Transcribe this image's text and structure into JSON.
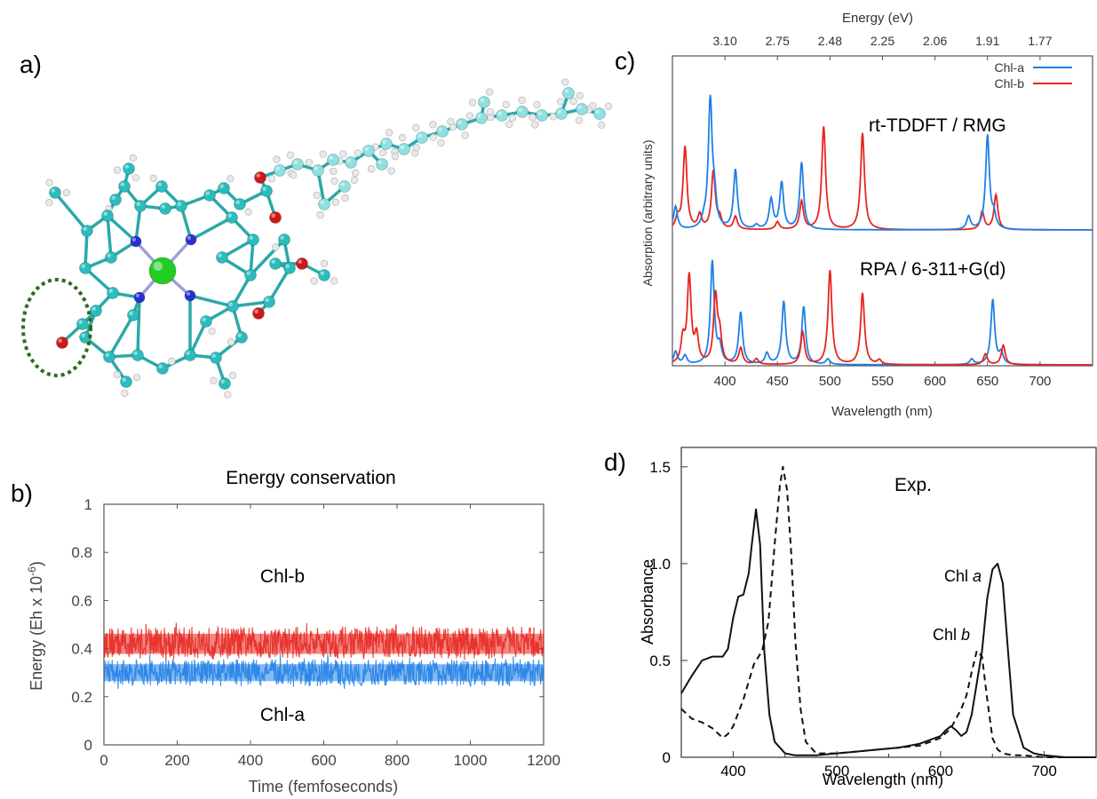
{
  "panels": {
    "a": {
      "letter": "a)"
    },
    "b": {
      "letter": "b)"
    },
    "c": {
      "letter": "c)"
    },
    "d": {
      "letter": "d)"
    }
  },
  "colors": {
    "chl_a_blue": "#1f7fe6",
    "chl_b_red": "#e8241e",
    "carbon": "#2bbdbd",
    "nitrogen": "#2a2fd0",
    "oxygen": "#d01818",
    "magnesium": "#22cc22",
    "hydrogen": "#e9e9e9",
    "highlight_green": "#2e6b1d"
  },
  "chart_data": [
    {
      "panel": "b",
      "type": "line",
      "title": "Energy conservation",
      "xlabel": "Time (femfoseconds)",
      "ylabel": "Energy (Eh x 10",
      "ylabel_sup": "-6",
      "ylabel_close": ")",
      "xlim": [
        0,
        1200
      ],
      "ylim": [
        0,
        1
      ],
      "xticks": [
        "0",
        "200",
        "400",
        "600",
        "800",
        "1000",
        "1200"
      ],
      "yticks": [
        "0",
        "0.2",
        "0.4",
        "0.6",
        "0.8",
        "1"
      ],
      "series": [
        {
          "name": "Chl-b",
          "color": "#e8241e",
          "mean": 0.42,
          "band": [
            0.33,
            0.52
          ]
        },
        {
          "name": "Chl-a",
          "color": "#1f7fe6",
          "mean": 0.3,
          "band": [
            0.22,
            0.38
          ]
        }
      ],
      "annotations": [
        "Chl-b",
        "Chl-a"
      ]
    },
    {
      "panel": "c",
      "type": "line",
      "top_axis_label": "Energy (eV)",
      "top_ticks": [
        "3.10",
        "2.75",
        "2.48",
        "2.25",
        "2.06",
        "1.91",
        "1.77"
      ],
      "top_tick_wavelengths": [
        400,
        450,
        500,
        550,
        600,
        650,
        700
      ],
      "xlabel": "Wavelength (nm)",
      "ylabel": "Absorption (arbitrary units)",
      "xlim": [
        350,
        750
      ],
      "xticks": [
        "400",
        "450",
        "500",
        "550",
        "600",
        "650",
        "700"
      ],
      "legend": [
        "Chl-a",
        "Chl-b"
      ],
      "legend_position": "top-right",
      "method_labels": [
        "rt-TDDFT / RMG",
        "RPA  / 6-311+G(d)"
      ],
      "series": [
        {
          "name": "Chl-a",
          "method": "rt-TDDFT / RMG",
          "peaks": [
            [
              353,
              0.18
            ],
            [
              380,
              0.05
            ],
            [
              386,
              1.0
            ],
            [
              390,
              0.2
            ],
            [
              410,
              0.46
            ],
            [
              430,
              0.03
            ],
            [
              444,
              0.23
            ],
            [
              454,
              0.36
            ],
            [
              473,
              0.52
            ],
            [
              632,
              0.1
            ],
            [
              650,
              0.73
            ],
            [
              656,
              0.1
            ]
          ]
        },
        {
          "name": "Chl-b",
          "method": "rt-TDDFT / RMG",
          "peaks": [
            [
              355,
              0.08
            ],
            [
              362,
              0.64
            ],
            [
              376,
              0.11
            ],
            [
              389,
              0.45
            ],
            [
              395,
              0.08
            ],
            [
              410,
              0.1
            ],
            [
              450,
              0.06
            ],
            [
              473,
              0.22
            ],
            [
              494,
              0.8
            ],
            [
              531,
              0.75
            ],
            [
              645,
              0.14
            ],
            [
              658,
              0.27
            ]
          ]
        },
        {
          "name": "Chl-a",
          "method": "RPA  / 6-311+G(d)",
          "peaks": [
            [
              353,
              0.12
            ],
            [
              362,
              0.08
            ],
            [
              388,
              0.95
            ],
            [
              395,
              0.15
            ],
            [
              415,
              0.48
            ],
            [
              440,
              0.1
            ],
            [
              456,
              0.58
            ],
            [
              475,
              0.53
            ],
            [
              498,
              0.05
            ],
            [
              635,
              0.05
            ],
            [
              655,
              0.6
            ],
            [
              663,
              0.1
            ]
          ]
        },
        {
          "name": "Chl-b",
          "method": "RPA  / 6-311+G(d)",
          "peaks": [
            [
              360,
              0.22
            ],
            [
              366,
              0.8
            ],
            [
              373,
              0.25
            ],
            [
              391,
              0.62
            ],
            [
              395,
              0.25
            ],
            [
              415,
              0.15
            ],
            [
              430,
              0.05
            ],
            [
              474,
              0.3
            ],
            [
              500,
              0.87
            ],
            [
              531,
              0.66
            ],
            [
              547,
              0.04
            ],
            [
              648,
              0.1
            ],
            [
              665,
              0.18
            ]
          ]
        }
      ]
    },
    {
      "panel": "d",
      "type": "line",
      "title": "Exp.",
      "xlabel": "Wavelength  (nm)",
      "ylabel": "Absorbance",
      "xlim": [
        350,
        750
      ],
      "ylim": [
        0,
        1.6
      ],
      "xticks": [
        "400",
        "500",
        "600",
        "700"
      ],
      "yticks": [
        "0",
        "0.5",
        "1.0",
        "1.5"
      ],
      "series": [
        {
          "name": "Chl a",
          "style": "solid",
          "x": [
            350,
            360,
            370,
            380,
            390,
            395,
            400,
            405,
            410,
            415,
            418,
            422,
            426,
            430,
            435,
            440,
            450,
            460,
            480,
            500,
            520,
            540,
            560,
            580,
            600,
            605,
            610,
            615,
            620,
            625,
            630,
            640,
            645,
            650,
            655,
            660,
            665,
            670,
            680,
            690,
            700,
            720,
            750
          ],
          "y": [
            0.33,
            0.42,
            0.5,
            0.52,
            0.52,
            0.56,
            0.72,
            0.83,
            0.84,
            0.95,
            1.1,
            1.28,
            1.1,
            0.55,
            0.22,
            0.08,
            0.02,
            0.01,
            0.01,
            0.02,
            0.03,
            0.04,
            0.05,
            0.07,
            0.11,
            0.14,
            0.16,
            0.14,
            0.11,
            0.13,
            0.22,
            0.55,
            0.82,
            0.97,
            1.0,
            0.9,
            0.55,
            0.22,
            0.05,
            0.02,
            0.01,
            0.0,
            0.0
          ]
        },
        {
          "name": "Chl b",
          "style": "dashed",
          "x": [
            350,
            360,
            370,
            380,
            390,
            395,
            400,
            410,
            420,
            428,
            434,
            440,
            445,
            448,
            452,
            456,
            460,
            465,
            470,
            480,
            500,
            520,
            540,
            560,
            580,
            600,
            610,
            620,
            625,
            630,
            635,
            640,
            645,
            650,
            655,
            660,
            670,
            680,
            700,
            750
          ],
          "y": [
            0.25,
            0.2,
            0.18,
            0.15,
            0.1,
            0.12,
            0.16,
            0.3,
            0.48,
            0.55,
            0.7,
            1.1,
            1.4,
            1.5,
            1.38,
            1.05,
            0.6,
            0.25,
            0.08,
            0.02,
            0.02,
            0.03,
            0.04,
            0.05,
            0.06,
            0.1,
            0.15,
            0.25,
            0.32,
            0.44,
            0.55,
            0.52,
            0.3,
            0.1,
            0.04,
            0.02,
            0.01,
            0.01,
            0.0,
            0.0
          ]
        }
      ],
      "annotations": [
        {
          "text": "Chl",
          "italic": "a"
        },
        {
          "text": "Chl",
          "italic": "b"
        }
      ]
    }
  ]
}
